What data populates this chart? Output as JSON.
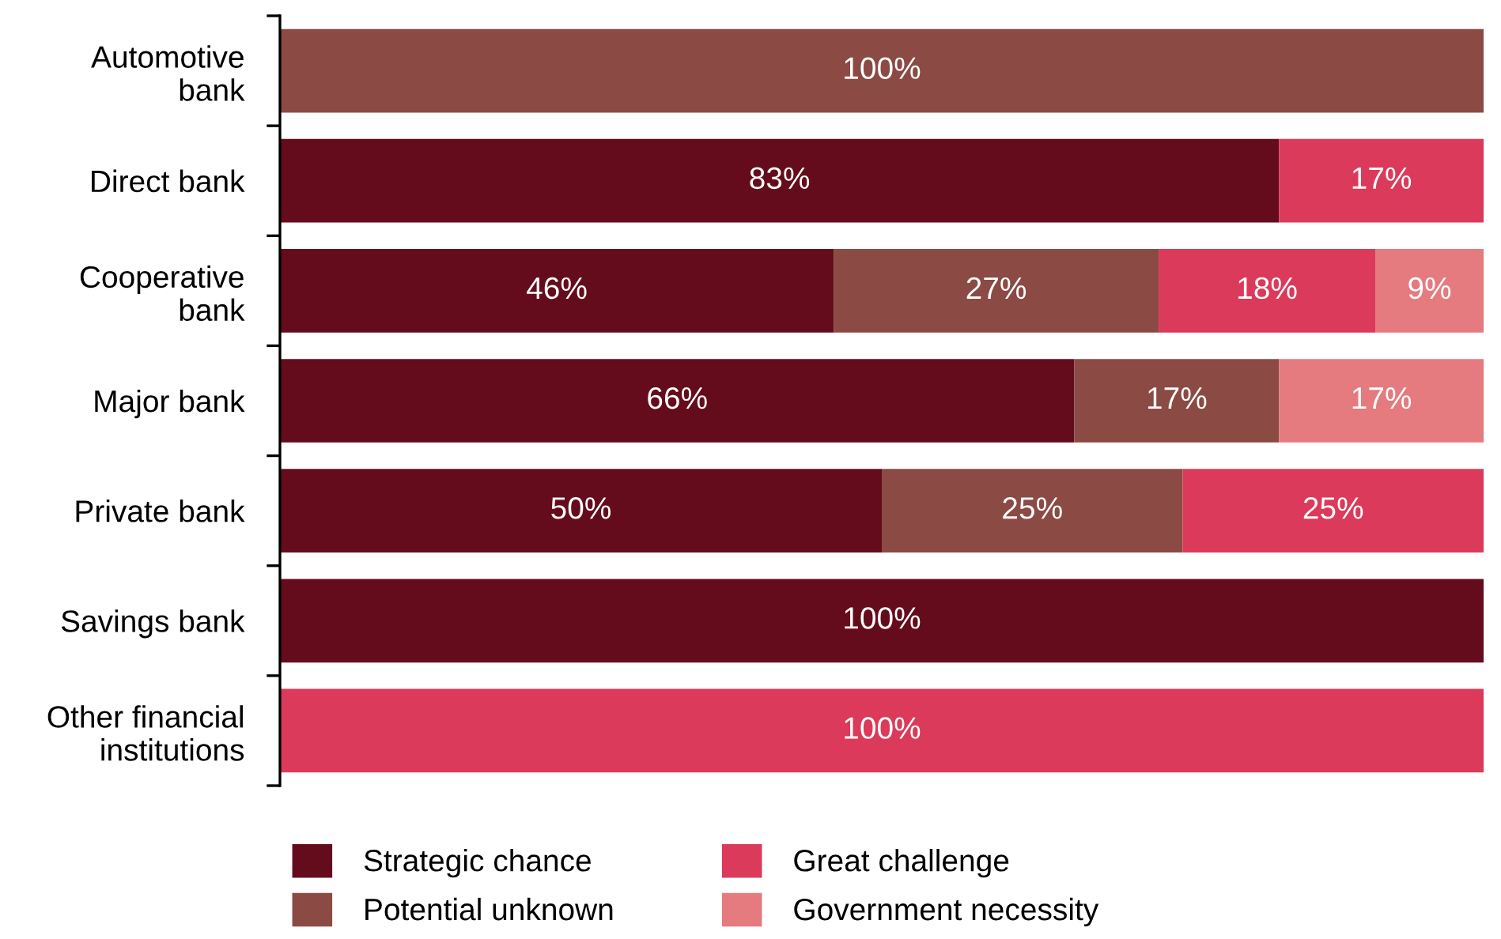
{
  "chart_data": {
    "type": "bar",
    "orientation": "horizontal",
    "stacked": true,
    "legend": "bottom",
    "grid": false,
    "xlim": [
      0,
      100
    ],
    "categories": [
      "Automotive\nbank",
      "Direct bank",
      "Cooperative\nbank",
      "Major bank",
      "Private bank",
      "Savings bank",
      "Other financial\ninstitutions"
    ],
    "series": [
      {
        "name": "Strategic chance",
        "color": "#650c1c",
        "values": [
          null,
          83,
          46,
          66,
          50,
          100,
          null
        ],
        "value_labels": [
          null,
          "83%",
          "46%",
          "66%",
          "50%",
          "100%",
          null
        ]
      },
      {
        "name": "Potential unknown",
        "color": "#8b4a44",
        "values": [
          100,
          null,
          27,
          17,
          25,
          null,
          null
        ],
        "value_labels": [
          "100%",
          null,
          "27%",
          "17%",
          "25%",
          null,
          null
        ]
      },
      {
        "name": "Great challenge",
        "color": "#db3a5a",
        "values": [
          null,
          17,
          18,
          null,
          25,
          null,
          100
        ],
        "value_labels": [
          null,
          "17%",
          "18%",
          null,
          "25%",
          null,
          "100%"
        ]
      },
      {
        "name": "Government necessity",
        "color": "#e57b7f",
        "values": [
          null,
          null,
          9,
          17,
          null,
          null,
          null
        ],
        "value_labels": [
          null,
          null,
          "9%",
          "17%",
          null,
          null,
          null
        ]
      }
    ]
  }
}
